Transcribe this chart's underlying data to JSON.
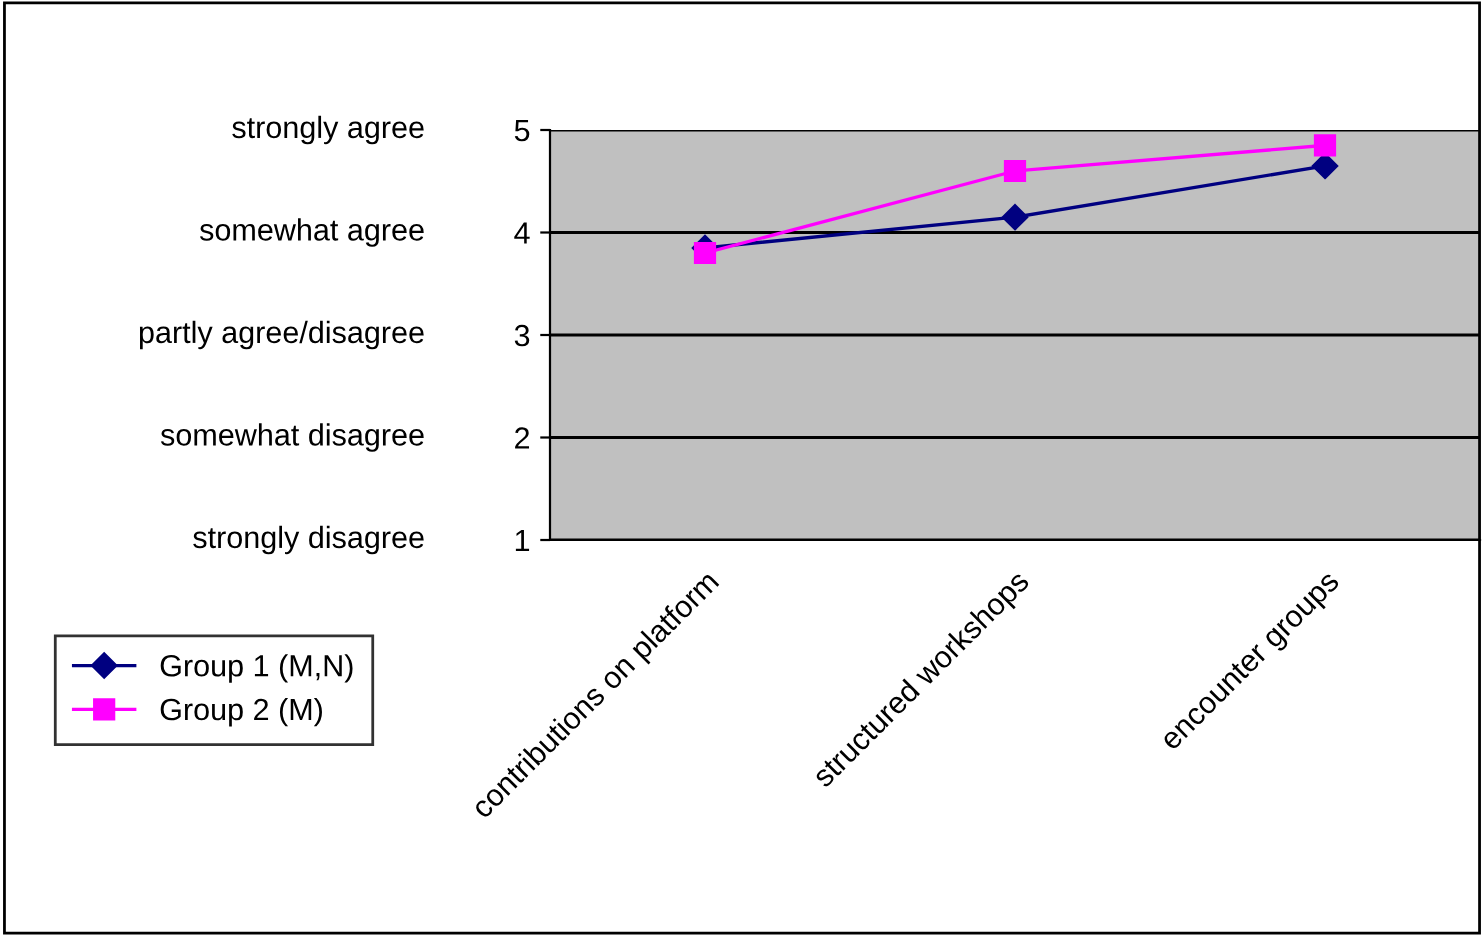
{
  "chart_data": {
    "type": "line",
    "categories": [
      "contributions on platform",
      "structured workshops",
      "encounter groups"
    ],
    "series": [
      {
        "name": "Group 1 (M,N)",
        "color": "#000080",
        "values": [
          3.85,
          4.15,
          4.65
        ],
        "marker": "diamond"
      },
      {
        "name": "Group 2 (M)",
        "color": "#ff00ff",
        "values": [
          3.8,
          4.6,
          4.85
        ],
        "marker": "square"
      }
    ],
    "ylim": [
      1,
      5
    ],
    "yticks": [
      1,
      2,
      3,
      4,
      5
    ],
    "annotations": [
      "strongly disagree",
      "somewhat disagree",
      "partly agree/disagree",
      "somewhat agree",
      "strongly agree"
    ],
    "grid": "y",
    "legend": "bottom left",
    "line_style": "solid"
  }
}
